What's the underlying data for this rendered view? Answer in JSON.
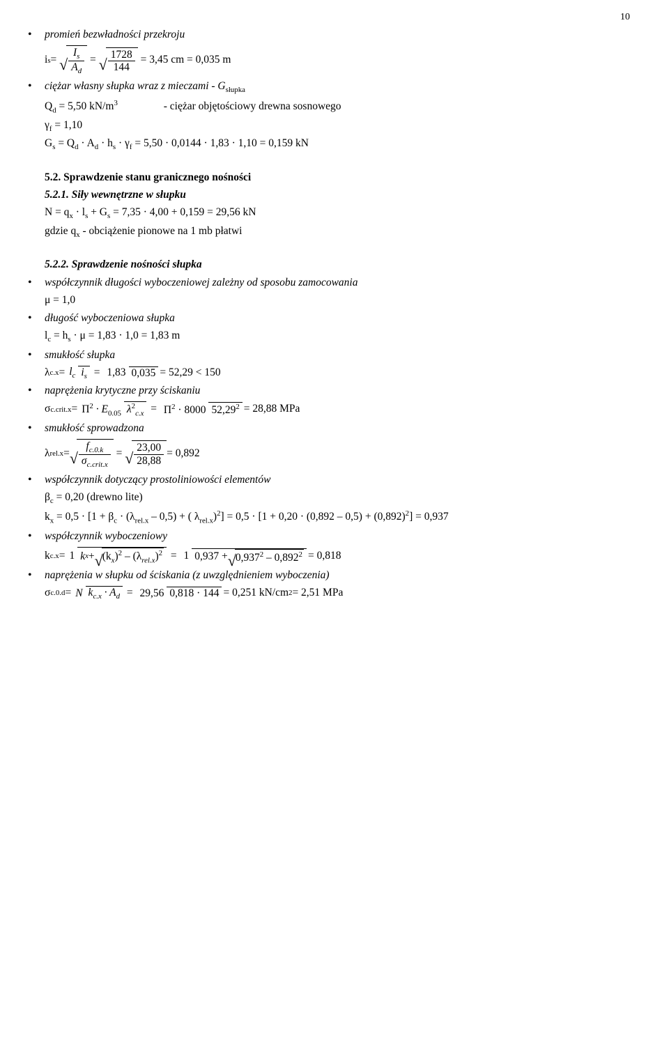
{
  "page_number": "10",
  "bullet_pro": "promień bezwładności przekroju",
  "promien_formula_lhs": "i",
  "promien_formula_lhs_sub": "s",
  "promien_I": "I",
  "promien_I_sub": "s",
  "promien_A": "A",
  "promien_A_sub": "d",
  "promien_num": "1728",
  "promien_den": "144",
  "promien_rhs": "= 3,45 cm  =  0,035 m",
  "bullet_ciezar": "ciężar własny słupka wraz z mieczami  -  G",
  "bullet_ciezar_sub": "słupka",
  "qd_line_left": "Q",
  "qd_line_left_sub": "d",
  "qd_line_mid": " = 5,50 kN/m",
  "qd_line_exp": "3",
  "qd_line_spacer": "                 ",
  "qd_line_right": "-  ciężar objętościowy drewna sosnowego",
  "gf_line": "γ",
  "gf_sub": "f",
  "gf_line_rest": "  = 1,10",
  "gs_line_l": "G",
  "gs_subl": "s",
  "gs_line_mid": "  =  Q",
  "gs_sub1": "d",
  "gs_dot1": " · A",
  "gs_sub2": "d",
  "gs_dot2": " · h",
  "gs_sub3": "s",
  "gs_dot3": "  · γ",
  "gs_sub4": "f",
  "gs_line_rest": "  =  5,50 · 0,0144 · 1,83  · 1,10   =  0,159 kN",
  "h52": "5.2.   Sprawdzenie stanu granicznego nośności",
  "h521": "5.2.1.   Siły wewnętrzne w słupku",
  "n_line_l": "N  =  q",
  "n_sub1": "x",
  "n_dot": " · l",
  "n_sub2": "s",
  "n_plus": " + G",
  "n_sub3": "s",
  "n_rhs": "  =  7,35 · 4,00 + 0,159 =  29,56 kN",
  "gdzie": "gdzie q",
  "gdzie_sub": "x",
  "gdzie_rest": "  -  obciążenie pionowe na 1 mb płatwi",
  "h522": "5.2.2.   Sprawdzenie nośności słupka",
  "bullet_wsp": "współczynnik długości wyboczeniowej zależny od sposobu zamocowania",
  "mu_line": "μ = 1,0",
  "bullet_dl": "długość wyboczeniowa słupka",
  "lc_line_l": "l",
  "lc_sub": "c",
  "lc_mid": " = h",
  "lc_sub2": "s",
  "lc_rest": " · μ  =  1,83 · 1,0  =  1,83 m",
  "bullet_smuk": "smukłość słupka",
  "lambda_cx_l": "λ",
  "lambda_cx_sub": "c.x",
  "lambda_cx_eq": " = ",
  "lambda_lc_top": "l",
  "lambda_lc_top_sub": "c",
  "lambda_lc_bot": "i",
  "lambda_lc_bot_sub": "s",
  "lambda_num": "1,83",
  "lambda_den": "0,035",
  "lambda_rhs": " =  52,29   <   150",
  "bullet_napr": "naprężenia krytyczne przy ściskaniu",
  "sig_critx_l": "σ",
  "sig_critx_sub": "c.crit.x",
  "sig_critx_eq": " = ",
  "sig_top1": "Π",
  "sig_top1_exp": "2",
  "sig_top1_E": " · E",
  "sig_top1_Esub": "0.05",
  "sig_bot1": "λ",
  "sig_bot1_exp": "2",
  "sig_bot1_sub": "c.x",
  "sig_top2": "Π",
  "sig_top2_exp": "2",
  "sig_top2_rest": " · 8000",
  "sig_bot2": "52,29",
  "sig_bot2_exp": "2",
  "sig_rhs": " = 28,88 MPa",
  "bullet_smsp": "smukłość sprowadzona",
  "lrel_l": "λ",
  "lrel_sub": "rel.x",
  "lrel_eq": " = ",
  "lrel_top_f": "f",
  "lrel_top_fsub": "c.0.k",
  "lrel_bot_s": "σ",
  "lrel_bot_ssub": "c.crit.x",
  "lrel_num": "23,00",
  "lrel_den": "28,88",
  "lrel_rhs": "  =  0,892",
  "bullet_prosto": "współczynnik dotyczący prostoliniowości elementów",
  "beta_line_l": "β",
  "beta_sub": "c",
  "beta_rest": " = 0,20   (drewno lite)",
  "kx_l": "k",
  "kx_sub": "x",
  "kx_mid1": " = 0,5 · [1 + β",
  "kx_mid1_sub": "c",
  "kx_mid2": " · (λ",
  "kx_mid2_sub": "rel.x",
  "kx_mid3": " – 0,5) + ( λ",
  "kx_mid3_sub": "rel.x",
  "kx_mid3_close": ")",
  "kx_exp": "2",
  "kx_mid4": "]  =  0,5 · [1 + 0,20 · (0,892 – 0,5) + (0,892)",
  "kx_exp2": "2",
  "kx_rhs": "]  = 0,937",
  "bullet_wspw": "współczynnik wyboczeniowy",
  "kcx_l": "k",
  "kcx_sub": "c.x",
  "kcx_eq": " = ",
  "kcx_top": "1",
  "kcx_bot_k": "k",
  "kcx_bot_ksub": "x",
  "kcx_bot_plus": " + ",
  "kcx_bot_sqrt_in_k": "(k",
  "kcx_bot_sqrt_sub": "x",
  "kcx_bot_sqrt_close": ")",
  "kcx_bot_sqrt_exp": "2",
  "kcx_bot_sqrt_minus": " – (λ",
  "kcx_bot_sqrt_lsub": "rel.x",
  "kcx_bot_sqrt_lclose": ")",
  "kcx_bot_sqrt_lexp": "2",
  "kcx_den2_k": "0,937 + ",
  "kcx_den2_sqrt_a": "0,937",
  "kcx_den2_sqrt_aexp": "2",
  "kcx_den2_sqrt_minus": " – 0,892",
  "kcx_den2_sqrt_bexp": "2",
  "kcx_rhs": " = 0,818",
  "bullet_naps": "naprężenia w słupku od ściskania (z uwzględnieniem wyboczenia)",
  "sig_c0d_l": "σ",
  "sig_c0d_sub": "c.0.d",
  "sig_c0d_eq": " = ",
  "sig_c0d_top": "N",
  "sig_c0d_bot_k": "k",
  "sig_c0d_bot_ksub": "c.x",
  "sig_c0d_bot_A": " · A",
  "sig_c0d_bot_Asub": "d",
  "sig_c0d_num": "29,56",
  "sig_c0d_den": "0,818 · 144",
  "sig_c0d_rhs1": " =  0,251 kN/cm",
  "sig_c0d_rhs1_exp": "2",
  "sig_c0d_rhs2": "  =  2,51 MPa"
}
